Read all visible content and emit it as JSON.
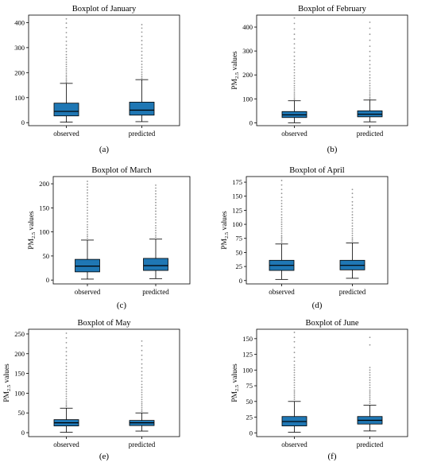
{
  "figure": {
    "colors": {
      "box_fill": "#1f77b4",
      "median": "#000000",
      "whisker": "#000000",
      "outlier": "#666666",
      "frame": "#000000"
    }
  },
  "chart_data": [
    {
      "type": "boxplot",
      "title": "Boxplot of January",
      "ylabel": "",
      "panel_label": "(a)",
      "categories": [
        "observed",
        "predicted"
      ],
      "ylim": [
        -12,
        430
      ],
      "yticks": [
        0,
        100,
        200,
        300,
        400
      ],
      "boxes": [
        {
          "whislo": 2,
          "q1": 27,
          "median": 45,
          "q3": 78,
          "whishi": 157,
          "fliers": [
            162,
            168,
            175,
            183,
            190,
            198,
            207,
            215,
            224,
            233,
            242,
            252,
            261,
            272,
            284,
            296,
            310,
            325,
            342,
            360,
            380,
            398,
            415
          ]
        },
        {
          "whislo": 4,
          "q1": 30,
          "median": 50,
          "q3": 82,
          "whishi": 172,
          "fliers": [
            178,
            185,
            193,
            202,
            212,
            222,
            233,
            245,
            258,
            270,
            285,
            298,
            312,
            328,
            345,
            362,
            378,
            392
          ]
        }
      ]
    },
    {
      "type": "boxplot",
      "title": "Boxplot of February",
      "ylabel": "PM2.5 values",
      "panel_label": "(b)",
      "categories": [
        "observed",
        "predicted"
      ],
      "ylim": [
        -12,
        450
      ],
      "yticks": [
        0,
        100,
        200,
        300,
        400
      ],
      "boxes": [
        {
          "whislo": 0,
          "q1": 22,
          "median": 33,
          "q3": 47,
          "whishi": 92,
          "fliers": [
            97,
            104,
            112,
            120,
            128,
            137,
            146,
            155,
            165,
            175,
            186,
            197,
            209,
            221,
            234,
            248,
            262,
            278,
            295,
            312,
            330,
            350,
            370,
            392,
            415,
            438
          ]
        },
        {
          "whislo": 4,
          "q1": 25,
          "median": 36,
          "q3": 50,
          "whishi": 95,
          "fliers": [
            100,
            106,
            113,
            120,
            128,
            136,
            145,
            155,
            165,
            176,
            188,
            200,
            214,
            228,
            243,
            260,
            278,
            298,
            320,
            345,
            370,
            395,
            420
          ]
        }
      ]
    },
    {
      "type": "boxplot",
      "title": "Boxplot of March",
      "ylabel": "PM2.5 values",
      "panel_label": "(c)",
      "categories": [
        "observed",
        "predicted"
      ],
      "ylim": [
        -8,
        215
      ],
      "yticks": [
        0,
        50,
        100,
        150,
        200
      ],
      "boxes": [
        {
          "whislo": 2,
          "q1": 17,
          "median": 29,
          "q3": 43,
          "whishi": 83,
          "fliers": [
            87,
            91,
            95,
            100,
            105,
            110,
            115,
            121,
            127,
            133,
            139,
            145,
            151,
            157,
            163,
            169,
            175,
            181,
            187,
            193,
            199,
            205
          ]
        },
        {
          "whislo": 3,
          "q1": 20,
          "median": 30,
          "q3": 45,
          "whishi": 85,
          "fliers": [
            89,
            93,
            98,
            103,
            108,
            113,
            119,
            125,
            131,
            137,
            143,
            149,
            155,
            161,
            167,
            173,
            179,
            185,
            191,
            197
          ]
        }
      ]
    },
    {
      "type": "boxplot",
      "title": "Boxplot of April",
      "ylabel": "PM2.5 values",
      "panel_label": "(d)",
      "categories": [
        "observed",
        "predicted"
      ],
      "ylim": [
        -6,
        185
      ],
      "yticks": [
        0,
        25,
        50,
        75,
        100,
        125,
        150,
        175
      ],
      "boxes": [
        {
          "whislo": 2,
          "q1": 18,
          "median": 27,
          "q3": 36,
          "whishi": 65,
          "fliers": [
            68,
            71,
            74,
            77,
            80,
            84,
            88,
            92,
            96,
            100,
            104,
            108,
            112,
            117,
            122,
            127,
            132,
            137,
            142,
            148,
            155,
            162,
            170,
            178
          ]
        },
        {
          "whislo": 4,
          "q1": 19,
          "median": 27,
          "q3": 36,
          "whishi": 67,
          "fliers": [
            70,
            73,
            76,
            80,
            84,
            88,
            92,
            97,
            102,
            107,
            112,
            117,
            122,
            128,
            134,
            140,
            148,
            155,
            162
          ]
        }
      ]
    },
    {
      "type": "boxplot",
      "title": "Boxplot of May",
      "ylabel": "PM2.5 values",
      "panel_label": "(e)",
      "categories": [
        "observed",
        "predicted"
      ],
      "ylim": [
        -10,
        262
      ],
      "yticks": [
        0,
        50,
        100,
        150,
        200,
        250
      ],
      "boxes": [
        {
          "whislo": 1,
          "q1": 17,
          "median": 25,
          "q3": 33,
          "whishi": 62,
          "fliers": [
            66,
            70,
            75,
            80,
            86,
            92,
            98,
            104,
            110,
            117,
            124,
            131,
            138,
            145,
            152,
            160,
            168,
            176,
            185,
            195,
            205,
            215,
            228,
            240,
            252
          ]
        },
        {
          "whislo": 4,
          "q1": 18,
          "median": 25,
          "q3": 31,
          "whishi": 50,
          "fliers": [
            54,
            58,
            63,
            68,
            73,
            78,
            84,
            90,
            96,
            102,
            108,
            115,
            122,
            130,
            138,
            146,
            155,
            164,
            174,
            185,
            196,
            208,
            220,
            232
          ]
        }
      ]
    },
    {
      "type": "boxplot",
      "title": "Boxplot of June",
      "ylabel": "PM2.5 values",
      "panel_label": "(f)",
      "categories": [
        "observed",
        "predicted"
      ],
      "ylim": [
        -6,
        165
      ],
      "yticks": [
        0,
        25,
        50,
        75,
        100,
        125,
        150
      ],
      "boxes": [
        {
          "whislo": 1,
          "q1": 11,
          "median": 18,
          "q3": 26,
          "whishi": 50,
          "fliers": [
            53,
            56,
            59,
            62,
            65,
            68,
            72,
            76,
            80,
            84,
            88,
            92,
            96,
            100,
            104,
            108,
            114,
            120,
            128,
            136,
            145,
            152,
            160
          ]
        },
        {
          "whislo": 3,
          "q1": 14,
          "median": 20,
          "q3": 26,
          "whishi": 44,
          "fliers": [
            47,
            50,
            53,
            56,
            59,
            62,
            65,
            68,
            72,
            76,
            80,
            84,
            88,
            92,
            96,
            100,
            104,
            140,
            152
          ]
        }
      ]
    }
  ]
}
